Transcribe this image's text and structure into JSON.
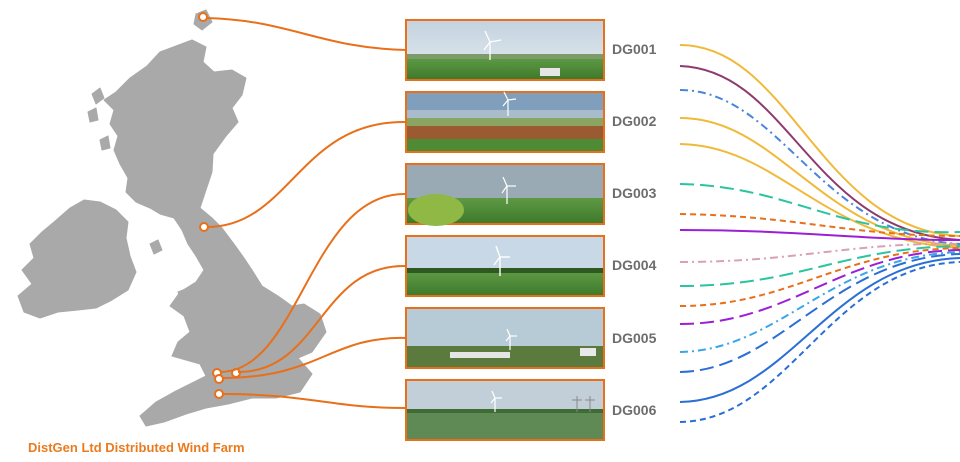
{
  "caption": "DistGen Ltd Distributed Wind Farm",
  "colors": {
    "accent": "#e8701a",
    "map_fill": "#a9a9a9",
    "label": "#6d6d6d",
    "sky": "#cfdbe6",
    "field": "#4d8a35"
  },
  "sites": [
    {
      "id": "DG001"
    },
    {
      "id": "DG002"
    },
    {
      "id": "DG003"
    },
    {
      "id": "DG004"
    },
    {
      "id": "DG005"
    },
    {
      "id": "DG006"
    }
  ],
  "icons": {
    "map": "uk-ireland-map-icon",
    "turbine": "wind-turbine-icon",
    "marker": "location-marker-icon"
  }
}
